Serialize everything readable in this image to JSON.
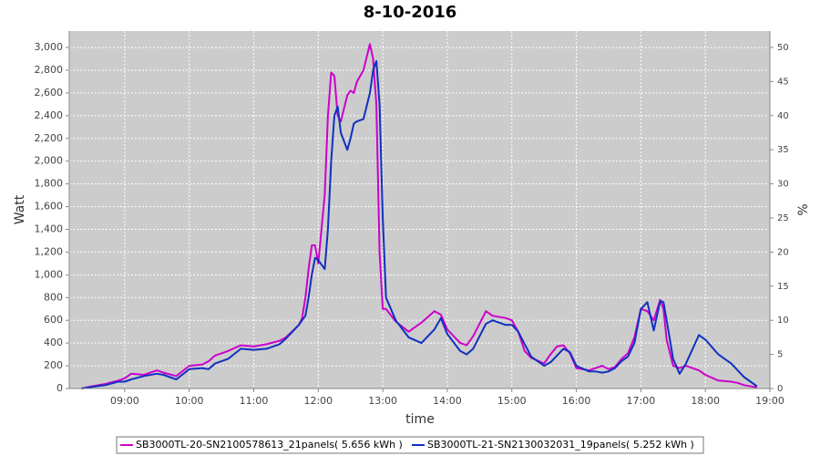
{
  "chart_data": {
    "type": "line",
    "title": "8-10-2016",
    "x_label": "time",
    "y_label": "Watt",
    "y2_label": "%",
    "x": [
      8.33,
      8.5,
      8.7,
      8.9,
      9.0,
      9.1,
      9.3,
      9.5,
      9.6,
      9.8,
      10.0,
      10.2,
      10.3,
      10.4,
      10.6,
      10.8,
      11.0,
      11.2,
      11.4,
      11.5,
      11.7,
      11.75,
      11.8,
      11.85,
      11.9,
      11.95,
      12.0,
      12.1,
      12.15,
      12.2,
      12.25,
      12.3,
      12.35,
      12.45,
      12.5,
      12.55,
      12.6,
      12.7,
      12.8,
      12.85,
      12.9,
      12.95,
      13.0,
      13.05,
      13.2,
      13.4,
      13.6,
      13.8,
      13.9,
      14.0,
      14.2,
      14.3,
      14.4,
      14.6,
      14.7,
      14.9,
      15.0,
      15.1,
      15.2,
      15.3,
      15.5,
      15.6,
      15.7,
      15.8,
      15.9,
      16.0,
      16.2,
      16.3,
      16.4,
      16.5,
      16.6,
      16.7,
      16.8,
      16.9,
      17.0,
      17.1,
      17.2,
      17.3,
      17.35,
      17.4,
      17.5,
      17.6,
      17.7,
      17.9,
      18.0,
      18.2,
      18.4,
      18.5,
      18.6,
      18.8
    ],
    "series": [
      {
        "name": "SB3000TL-20-SN2100578613_21panels( 5.656 kWh )",
        "color": "#cc00cc",
        "values": [
          0,
          20,
          40,
          70,
          90,
          130,
          120,
          160,
          140,
          110,
          200,
          210,
          240,
          290,
          330,
          380,
          370,
          390,
          420,
          450,
          560,
          620,
          800,
          1050,
          1260,
          1260,
          1100,
          1700,
          2400,
          2780,
          2750,
          2400,
          2350,
          2580,
          2620,
          2600,
          2700,
          2800,
          3030,
          2900,
          2500,
          1200,
          700,
          700,
          590,
          500,
          580,
          680,
          650,
          520,
          400,
          380,
          460,
          680,
          640,
          620,
          600,
          500,
          330,
          270,
          220,
          300,
          370,
          380,
          310,
          180,
          160,
          180,
          200,
          170,
          190,
          260,
          310,
          450,
          700,
          680,
          600,
          780,
          700,
          430,
          200,
          180,
          200,
          160,
          120,
          70,
          60,
          50,
          30,
          10
        ]
      },
      {
        "name": "SB3000TL-21-SN2130032031_19panels( 5.252 kWh )",
        "color": "#1030c0",
        "values": [
          0,
          15,
          30,
          60,
          60,
          80,
          110,
          130,
          120,
          80,
          170,
          180,
          170,
          220,
          260,
          350,
          340,
          350,
          390,
          440,
          560,
          600,
          640,
          800,
          1000,
          1150,
          1130,
          1050,
          1400,
          2000,
          2400,
          2480,
          2250,
          2100,
          2200,
          2330,
          2350,
          2370,
          2600,
          2800,
          2880,
          2500,
          1500,
          800,
          600,
          450,
          400,
          520,
          620,
          480,
          330,
          300,
          350,
          570,
          600,
          560,
          560,
          500,
          390,
          280,
          200,
          230,
          290,
          350,
          320,
          200,
          150,
          150,
          140,
          150,
          180,
          240,
          280,
          400,
          700,
          760,
          510,
          770,
          760,
          600,
          260,
          130,
          220,
          470,
          430,
          300,
          220,
          160,
          100,
          20
        ]
      }
    ],
    "xlim": [
      8.14,
      19.0
    ],
    "xticks": [
      {
        "value": 9,
        "label": "09:00"
      },
      {
        "value": 10,
        "label": "10:00"
      },
      {
        "value": 11,
        "label": "11:00"
      },
      {
        "value": 12,
        "label": "12:00"
      },
      {
        "value": 13,
        "label": "13:00"
      },
      {
        "value": 14,
        "label": "14:00"
      },
      {
        "value": 15,
        "label": "15:00"
      },
      {
        "value": 16,
        "label": "16:00"
      },
      {
        "value": 17,
        "label": "17:00"
      },
      {
        "value": 18,
        "label": "18:00"
      },
      {
        "value": 19,
        "label": "19:00"
      }
    ],
    "ylim": [
      0,
      3145
    ],
    "yticks": [
      0,
      200,
      400,
      600,
      800,
      {
        "value": 1000,
        "label": "1,000"
      },
      {
        "value": 1200,
        "label": "1,200"
      },
      {
        "value": 1400,
        "label": "1,400"
      },
      {
        "value": 1600,
        "label": "1,600"
      },
      {
        "value": 1800,
        "label": "1,800"
      },
      {
        "value": 2000,
        "label": "2,000"
      },
      {
        "value": 2200,
        "label": "2,200"
      },
      {
        "value": 2400,
        "label": "2,400"
      },
      {
        "value": 2600,
        "label": "2,600"
      },
      {
        "value": 2800,
        "label": "2,800"
      },
      {
        "value": 3000,
        "label": "3,000"
      }
    ],
    "y2lim": [
      0,
      52.4
    ],
    "y2ticks": [
      0,
      5,
      10,
      15,
      20,
      25,
      30,
      35,
      40,
      45,
      50
    ],
    "grid": true
  }
}
